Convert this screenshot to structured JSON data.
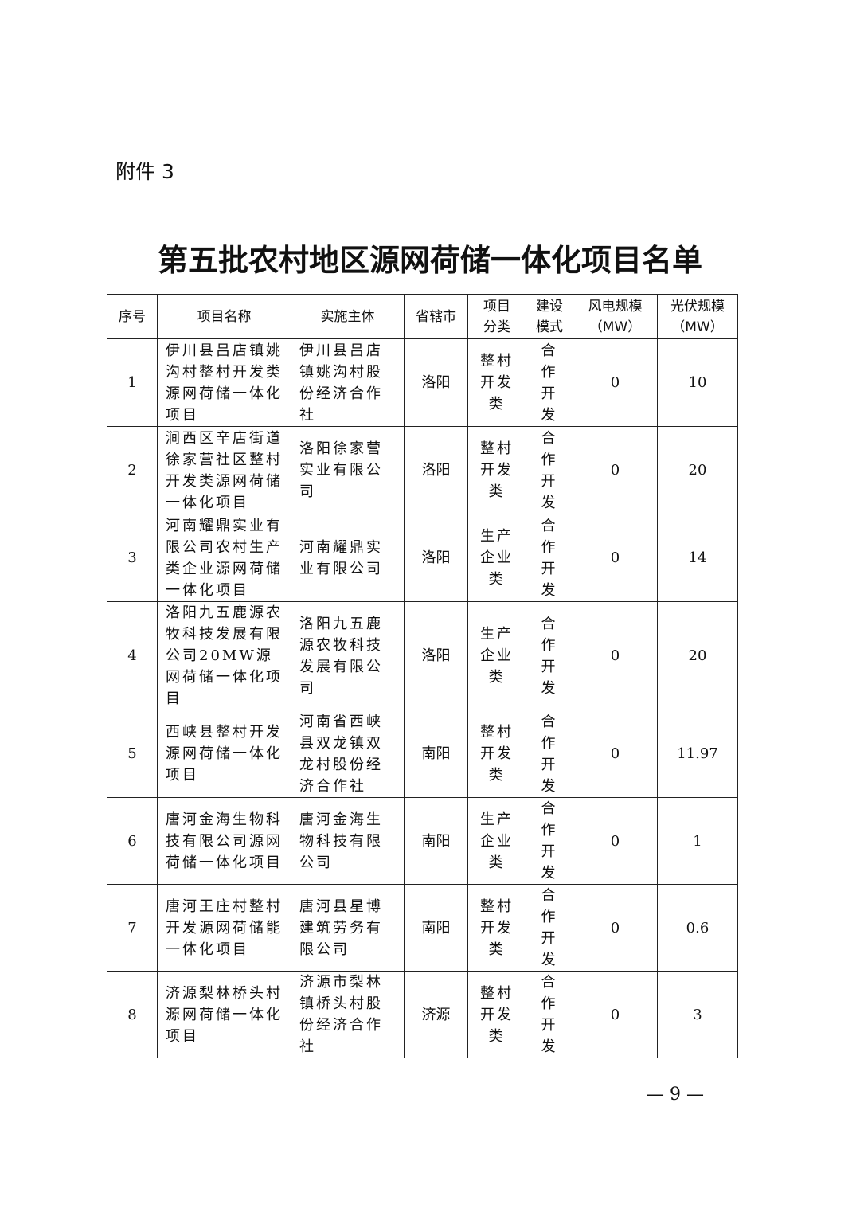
{
  "attachment_label": "附件 3",
  "title": "第五批农村地区源网荷储一体化项目名单",
  "table": {
    "headers": [
      "序号",
      "项目名称",
      "实施主体",
      "省辖市",
      "项目分类",
      "建设模式",
      "风电规模（MW）",
      "光伏规模（MW）"
    ],
    "rows": [
      [
        "1",
        "伊川县吕店镇姚沟村整村开发类源网荷储一体化项目",
        "伊川县吕店镇姚沟村股份经济合作社",
        "洛阳",
        "整村开发类",
        "合作开发",
        "0",
        "10"
      ],
      [
        "2",
        "涧西区辛店街道徐家营社区整村开发类源网荷储一体化项目",
        "洛阳徐家营实业有限公司",
        "洛阳",
        "整村开发类",
        "合作开发",
        "0",
        "20"
      ],
      [
        "3",
        "河南耀鼎实业有限公司农村生产类企业源网荷储一体化项目",
        "河南耀鼎实业有限公司",
        "洛阳",
        "生产企业类",
        "合作开发",
        "0",
        "14"
      ],
      [
        "4",
        "洛阳九五鹿源农牧科技发展有限公司20MW源网荷储一体化项目",
        "洛阳九五鹿源农牧科技发展有限公司",
        "洛阳",
        "生产企业类",
        "合作开发",
        "0",
        "20"
      ],
      [
        "5",
        "西峡县整村开发源网荷储一体化项目",
        "河南省西峡县双龙镇双龙村股份经济合作社",
        "南阳",
        "整村开发类",
        "合作开发",
        "0",
        "11.97"
      ],
      [
        "6",
        "唐河金海生物科技有限公司源网荷储一体化项目",
        "唐河金海生物科技有限公司",
        "南阳",
        "生产企业类",
        "合作开发",
        "0",
        "1"
      ],
      [
        "7",
        "唐河王庄村整村开发源网荷储能一体化项目",
        "唐河县星博建筑劳务有限公司",
        "南阳",
        "整村开发类",
        "合作开发",
        "0",
        "0.6"
      ],
      [
        "8",
        "济源梨林桥头村源网荷储一体化项目",
        "济源市梨林镇桥头村股份经济合作社",
        "济源",
        "整村开发类",
        "合作开发",
        "0",
        "3"
      ]
    ]
  },
  "page_number": "— 9 —"
}
